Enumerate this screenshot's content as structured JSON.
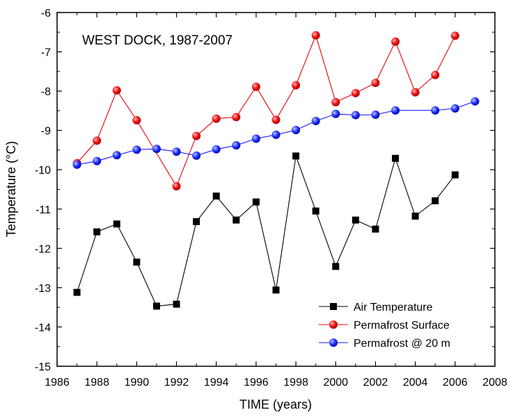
{
  "chart_data": {
    "type": "line",
    "title": "",
    "annotation": "WEST DOCK, 1987-2007",
    "xlabel": "TIME (years)",
    "ylabel": "Temperature (°C)",
    "xlim": [
      1986,
      2008
    ],
    "ylim": [
      -15,
      -6
    ],
    "xticks": [
      "1986",
      "1988",
      "1990",
      "1992",
      "1994",
      "1996",
      "1998",
      "2000",
      "2002",
      "2004",
      "2006",
      "2008"
    ],
    "yticks": [
      "-15",
      "-14",
      "-13",
      "-12",
      "-11",
      "-10",
      "-9",
      "-8",
      "-7",
      "-6"
    ],
    "grid": false,
    "legend_position": "bottom-right",
    "series": [
      {
        "name": "Air Temperature",
        "color": "#000000",
        "marker": "square",
        "points": [
          [
            1987,
            -13.12
          ],
          [
            1988,
            -11.58
          ],
          [
            1989,
            -11.38
          ],
          [
            1990,
            -12.35
          ],
          [
            1991,
            -13.47
          ],
          [
            1992,
            -13.42
          ],
          [
            1993,
            -11.32
          ],
          [
            1994,
            -10.67
          ],
          [
            1995,
            -11.28
          ],
          [
            1996,
            -10.82
          ],
          [
            1997,
            -13.06
          ],
          [
            1998,
            -9.65
          ],
          [
            1999,
            -11.05
          ],
          [
            2000,
            -12.46
          ],
          [
            2001,
            -11.28
          ],
          [
            2002,
            -11.51
          ],
          [
            2003,
            -9.71
          ],
          [
            2004,
            -11.18
          ],
          [
            2005,
            -10.79
          ],
          [
            2006,
            -10.13
          ]
        ]
      },
      {
        "name": "Permafrost Surface",
        "color": "#e8000b",
        "marker": "circle",
        "points": [
          [
            1987,
            -9.83
          ],
          [
            1988,
            -9.26
          ],
          [
            1989,
            -7.98
          ],
          [
            1990,
            -8.74
          ],
          [
            1992,
            -10.42
          ],
          [
            1993,
            -9.14
          ],
          [
            1994,
            -8.7
          ],
          [
            1995,
            -8.66
          ],
          [
            1996,
            -7.89
          ],
          [
            1997,
            -8.73
          ],
          [
            1998,
            -7.85
          ],
          [
            1999,
            -6.58
          ],
          [
            2000,
            -8.28
          ],
          [
            2001,
            -8.05
          ],
          [
            2002,
            -7.79
          ],
          [
            2003,
            -6.74
          ],
          [
            2004,
            -8.03
          ],
          [
            2005,
            -7.59
          ],
          [
            2006,
            -6.59
          ]
        ]
      },
      {
        "name": "Permafrost @ 20 m",
        "color": "#1a1aff",
        "marker": "circle",
        "points": [
          [
            1987,
            -9.87
          ],
          [
            1988,
            -9.78
          ],
          [
            1989,
            -9.63
          ],
          [
            1990,
            -9.49
          ],
          [
            1991,
            -9.47
          ],
          [
            1992,
            -9.54
          ],
          [
            1993,
            -9.64
          ],
          [
            1994,
            -9.48
          ],
          [
            1995,
            -9.38
          ],
          [
            1996,
            -9.21
          ],
          [
            1997,
            -9.11
          ],
          [
            1998,
            -8.99
          ],
          [
            1999,
            -8.76
          ],
          [
            2000,
            -8.58
          ],
          [
            2001,
            -8.61
          ],
          [
            2002,
            -8.6
          ],
          [
            2003,
            -8.49
          ],
          [
            2005,
            -8.49
          ],
          [
            2006,
            -8.44
          ],
          [
            2007,
            -8.26
          ]
        ]
      }
    ]
  }
}
